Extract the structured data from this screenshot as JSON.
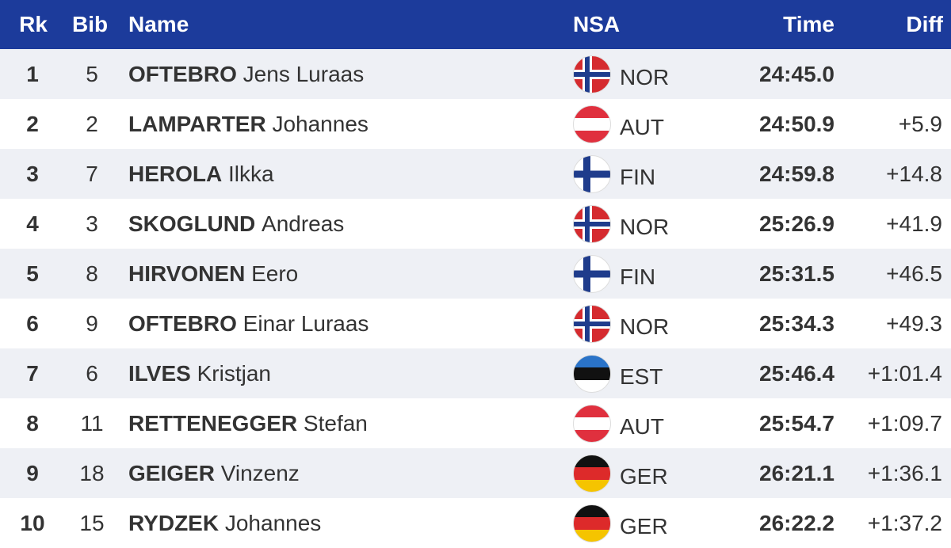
{
  "header": {
    "rank": "Rk",
    "bib": "Bib",
    "name": "Name",
    "nsa": "NSA",
    "time": "Time",
    "diff": "Diff"
  },
  "rows": [
    {
      "rank": 1,
      "bib": 5,
      "surname": "OFTEBRO",
      "given": "Jens Luraas",
      "nsa": "NOR",
      "time": "24:45.0"
    },
    {
      "rank": 2,
      "bib": 2,
      "surname": "LAMPARTER",
      "given": "Johannes",
      "nsa": "AUT",
      "time": "24:50.9",
      "diff": "+5.9"
    },
    {
      "rank": 3,
      "bib": 7,
      "surname": "HEROLA",
      "given": "Ilkka",
      "nsa": "FIN",
      "time": "24:59.8",
      "diff": "+14.8"
    },
    {
      "rank": 4,
      "bib": 3,
      "surname": "SKOGLUND",
      "given": "Andreas",
      "nsa": "NOR",
      "time": "25:26.9",
      "diff": "+41.9"
    },
    {
      "rank": 5,
      "bib": 8,
      "surname": "HIRVONEN",
      "given": "Eero",
      "nsa": "FIN",
      "time": "25:31.5",
      "diff": "+46.5"
    },
    {
      "rank": 6,
      "bib": 9,
      "surname": "OFTEBRO",
      "given": "Einar Luraas",
      "nsa": "NOR",
      "time": "25:34.3",
      "diff": "+49.3"
    },
    {
      "rank": 7,
      "bib": 6,
      "surname": "ILVES",
      "given": "Kristjan",
      "nsa": "EST",
      "time": "25:46.4",
      "diff": "+1:01.4"
    },
    {
      "rank": 8,
      "bib": 11,
      "surname": "RETTENEGGER",
      "given": "Stefan",
      "nsa": "AUT",
      "time": "25:54.7",
      "diff": "+1:09.7"
    },
    {
      "rank": 9,
      "bib": 18,
      "surname": "GEIGER",
      "given": "Vinzenz",
      "nsa": "GER",
      "time": "26:21.1",
      "diff": "+1:36.1"
    },
    {
      "rank": 10,
      "bib": 15,
      "surname": "RYDZEK",
      "given": "Johannes",
      "nsa": "GER",
      "time": "26:22.2",
      "diff": "+1:37.2"
    }
  ]
}
